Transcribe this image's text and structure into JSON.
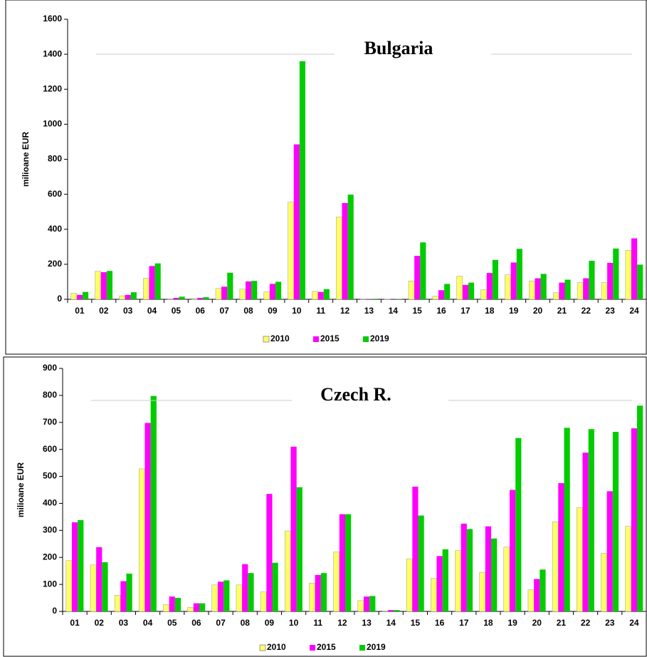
{
  "chart_data": [
    {
      "type": "bar",
      "title": "Bulgaria",
      "y_label": "milioane EUR",
      "categories": [
        "01",
        "02",
        "03",
        "04",
        "05",
        "06",
        "07",
        "08",
        "09",
        "10",
        "11",
        "12",
        "13",
        "14",
        "15",
        "16",
        "17",
        "18",
        "19",
        "20",
        "21",
        "22",
        "23",
        "24"
      ],
      "series": [
        {
          "name": "2010",
          "color": "#ffff66",
          "values": [
            35,
            160,
            20,
            120,
            2,
            5,
            62,
            58,
            42,
            555,
            45,
            470,
            2,
            1,
            105,
            18,
            132,
            55,
            140,
            105,
            38,
            95,
            95,
            280
          ]
        },
        {
          "name": "2015",
          "color": "#ff00ff",
          "values": [
            25,
            155,
            25,
            190,
            8,
            8,
            72,
            102,
            88,
            885,
            42,
            550,
            2,
            1,
            248,
            52,
            82,
            150,
            210,
            120,
            95,
            120,
            208,
            348
          ]
        },
        {
          "name": "2019",
          "color": "#00cc00",
          "values": [
            42,
            162,
            40,
            205,
            15,
            12,
            152,
            105,
            100,
            1360,
            58,
            598,
            3,
            2,
            325,
            88,
            95,
            225,
            288,
            145,
            112,
            220,
            290,
            198
          ]
        }
      ],
      "ylim": [
        0,
        1600
      ],
      "yticks": [
        0,
        200,
        400,
        600,
        800,
        1000,
        1200,
        1400,
        1600
      ],
      "legend": "bottom"
    },
    {
      "type": "bar",
      "title": "Czech R.",
      "y_label": "milioane EUR",
      "categories": [
        "01",
        "02",
        "03",
        "04",
        "05",
        "06",
        "07",
        "08",
        "09",
        "10",
        "11",
        "12",
        "13",
        "14",
        "15",
        "16",
        "17",
        "18",
        "19",
        "20",
        "21",
        "22",
        "23",
        "24"
      ],
      "series": [
        {
          "name": "2010",
          "color": "#ffff66",
          "values": [
            188,
            172,
            60,
            528,
            25,
            15,
            98,
            98,
            72,
            298,
            105,
            220,
            40,
            2,
            195,
            122,
            225,
            145,
            238,
            80,
            332,
            385,
            215,
            315
          ]
        },
        {
          "name": "2015",
          "color": "#ff00ff",
          "values": [
            330,
            238,
            112,
            698,
            55,
            30,
            110,
            175,
            435,
            610,
            135,
            360,
            55,
            5,
            462,
            205,
            325,
            315,
            450,
            120,
            475,
            588,
            445,
            678
          ]
        },
        {
          "name": "2019",
          "color": "#00cc00",
          "values": [
            338,
            182,
            140,
            798,
            50,
            30,
            115,
            142,
            180,
            460,
            142,
            360,
            57,
            5,
            355,
            230,
            305,
            270,
            642,
            155,
            680,
            675,
            665,
            762
          ]
        }
      ],
      "ylim": [
        0,
        900
      ],
      "yticks": [
        0,
        100,
        200,
        300,
        400,
        500,
        600,
        700,
        800,
        900
      ],
      "legend": "bottom"
    }
  ]
}
